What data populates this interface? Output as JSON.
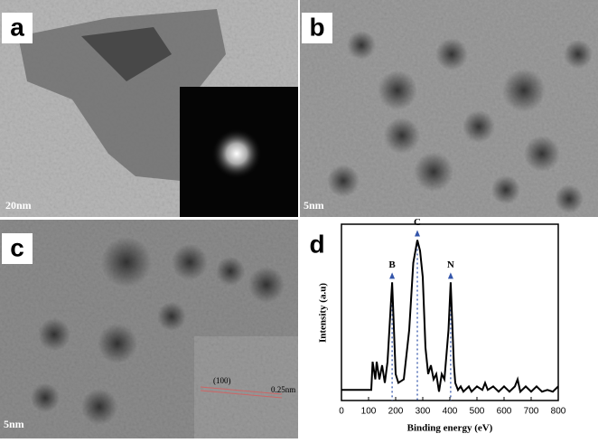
{
  "panels": [
    {
      "label": "a",
      "scale_bar": "20nm"
    },
    {
      "label": "b",
      "scale_bar": "5nm"
    },
    {
      "label": "c",
      "scale_bar": "5nm",
      "inset_labels": [
        "(100)",
        "0.25nm"
      ]
    },
    {
      "label": "d"
    }
  ],
  "chart_data": {
    "type": "line",
    "x_label": "Binding energy (eV)",
    "y_label": "Intensity (a.u)",
    "x": [
      0,
      110,
      115,
      125,
      130,
      140,
      150,
      160,
      170,
      187,
      200,
      210,
      230,
      250,
      265,
      280,
      290,
      300,
      310,
      320,
      330,
      340,
      350,
      360,
      370,
      380,
      395,
      403,
      415,
      420,
      430,
      440,
      450,
      470,
      480,
      500,
      520,
      530,
      540,
      560,
      580,
      600,
      620,
      640,
      650,
      660,
      680,
      700,
      720,
      740,
      760,
      780,
      800
    ],
    "values": [
      6,
      6,
      22,
      12,
      22,
      12,
      20,
      10,
      22,
      67,
      15,
      10,
      12,
      40,
      78,
      91,
      85,
      70,
      30,
      15,
      20,
      12,
      15,
      5,
      15,
      12,
      40,
      67,
      20,
      10,
      6,
      8,
      5,
      8,
      5,
      8,
      6,
      10,
      6,
      8,
      5,
      8,
      5,
      8,
      12,
      5,
      8,
      5,
      8,
      5,
      6,
      5,
      8
    ],
    "color": "#000000",
    "xlim": [
      0,
      800
    ],
    "xticks": [
      0,
      100,
      200,
      300,
      400,
      500,
      600,
      700,
      800
    ],
    "ylim": [
      0,
      100
    ],
    "annotations": [
      {
        "text": "B",
        "x": 187
      },
      {
        "text": "C",
        "x": 280
      },
      {
        "text": "N",
        "x": 403
      }
    ]
  }
}
